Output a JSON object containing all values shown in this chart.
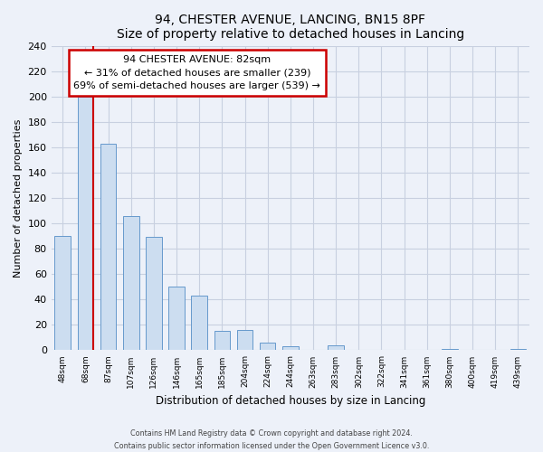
{
  "title": "94, CHESTER AVENUE, LANCING, BN15 8PF",
  "subtitle": "Size of property relative to detached houses in Lancing",
  "xlabel": "Distribution of detached houses by size in Lancing",
  "ylabel": "Number of detached properties",
  "bin_labels": [
    "48sqm",
    "68sqm",
    "87sqm",
    "107sqm",
    "126sqm",
    "146sqm",
    "165sqm",
    "185sqm",
    "204sqm",
    "224sqm",
    "244sqm",
    "263sqm",
    "283sqm",
    "302sqm",
    "322sqm",
    "341sqm",
    "361sqm",
    "380sqm",
    "400sqm",
    "419sqm",
    "439sqm"
  ],
  "bar_heights": [
    90,
    200,
    163,
    106,
    89,
    50,
    43,
    15,
    16,
    6,
    3,
    0,
    4,
    0,
    0,
    0,
    0,
    1,
    0,
    0,
    1
  ],
  "bar_color": "#ccddf0",
  "bar_edge_color": "#6699cc",
  "marker_line_color": "#cc0000",
  "annotation_box_edge": "#cc0000",
  "annotation_box_color": "white",
  "marker_label": "94 CHESTER AVENUE: 82sqm",
  "annotation_line1": "← 31% of detached houses are smaller (239)",
  "annotation_line2": "69% of semi-detached houses are larger (539) →",
  "ylim": [
    0,
    240
  ],
  "yticks": [
    0,
    20,
    40,
    60,
    80,
    100,
    120,
    140,
    160,
    180,
    200,
    220,
    240
  ],
  "footer_line1": "Contains HM Land Registry data © Crown copyright and database right 2024.",
  "footer_line2": "Contains public sector information licensed under the Open Government Licence v3.0.",
  "bg_color": "#edf1f9",
  "grid_color": "#c8d0e0"
}
